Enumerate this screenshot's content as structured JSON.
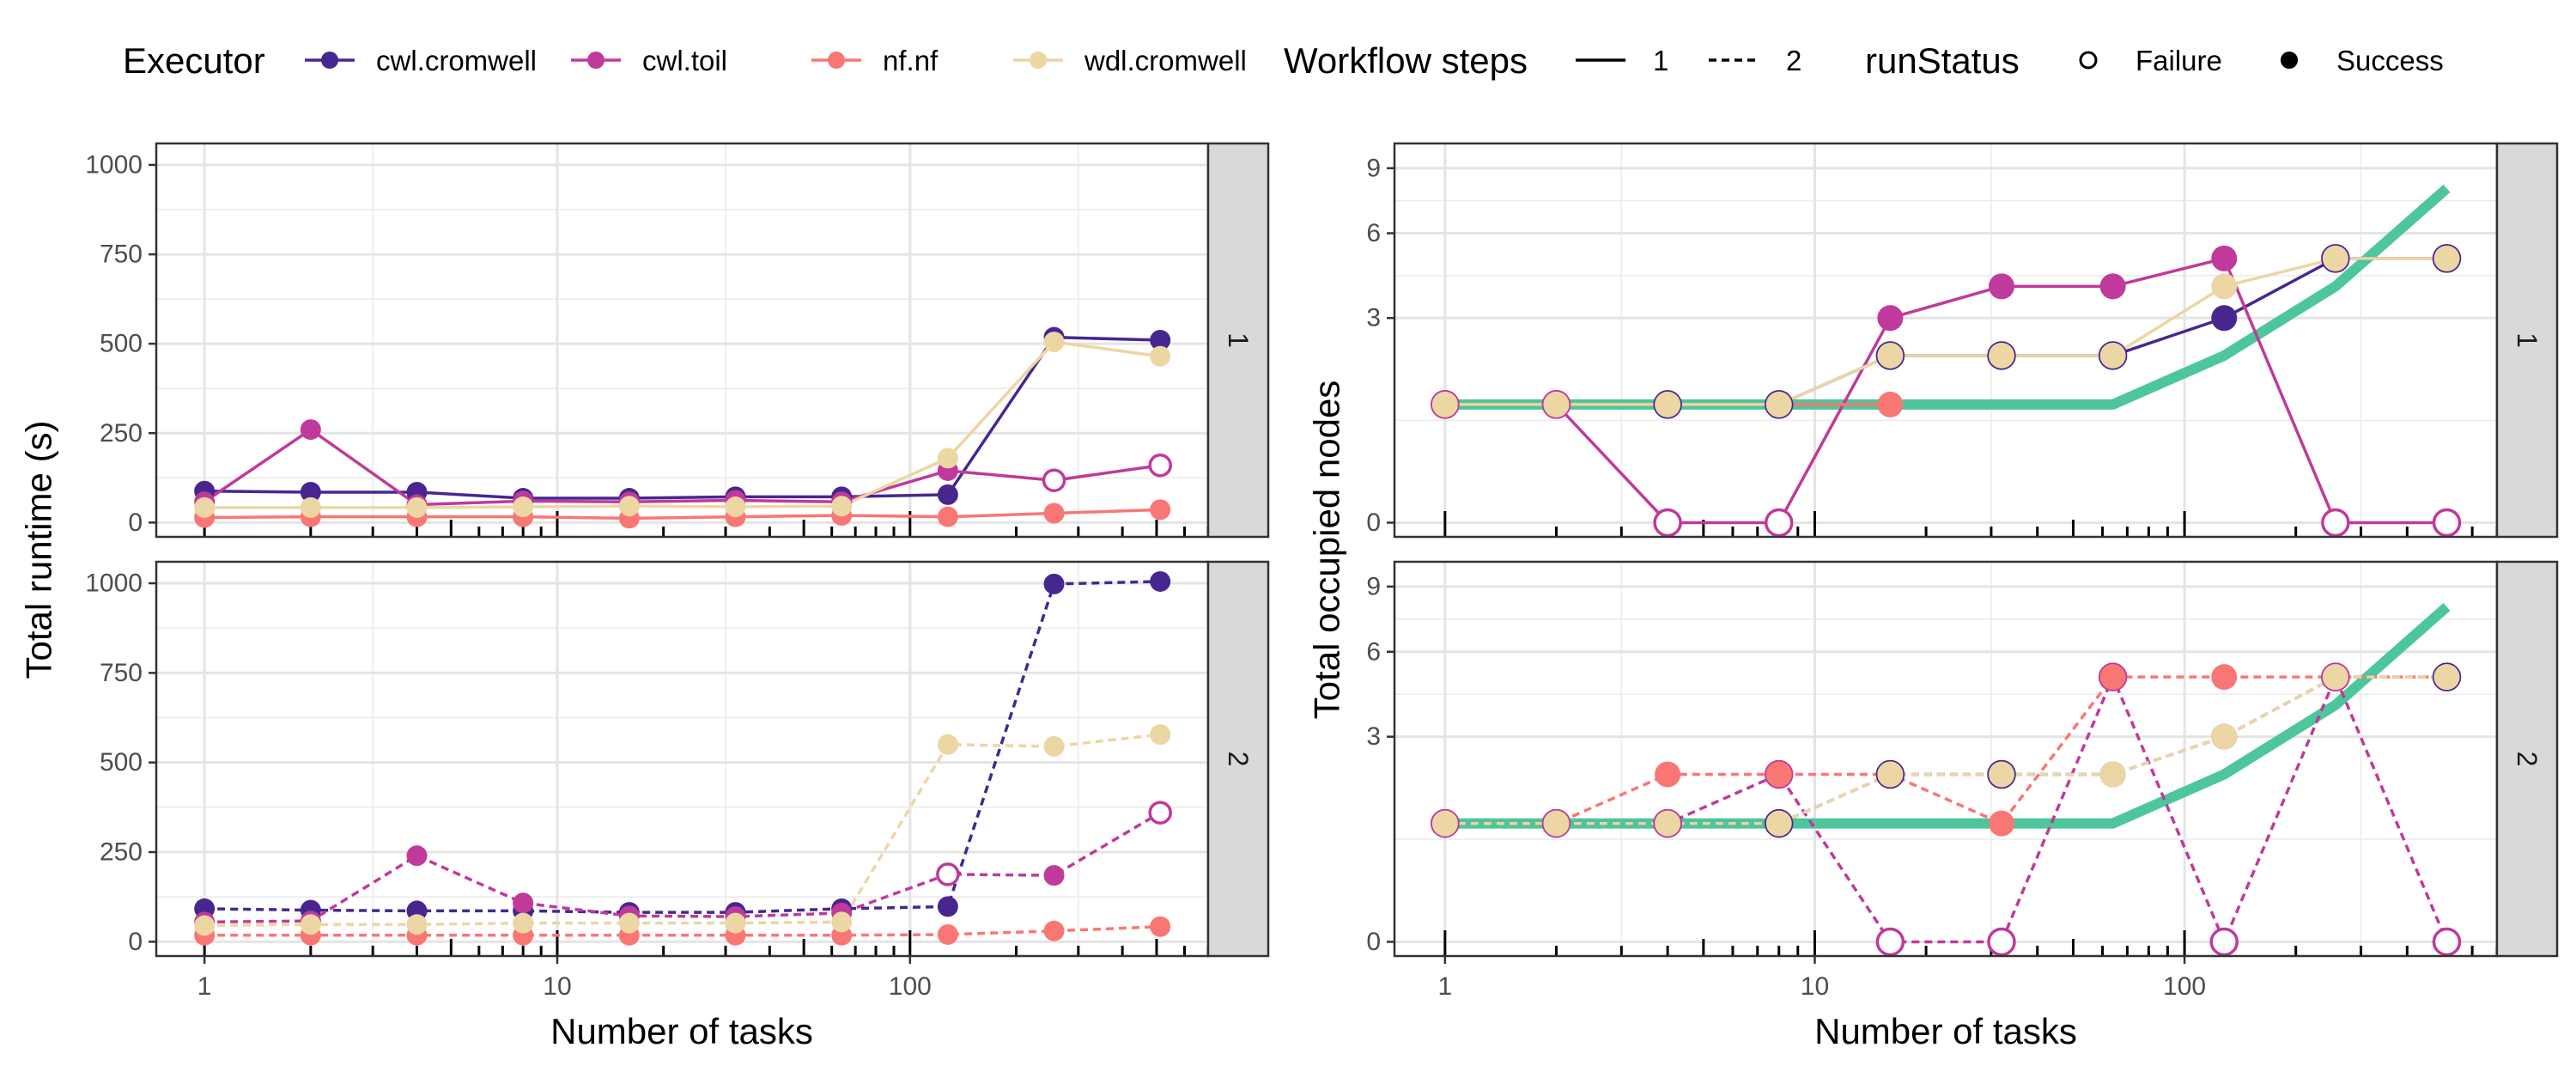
{
  "chart_data": {
    "type": "line",
    "x_scale": "log",
    "legend": {
      "executor": {
        "title": "Executor",
        "items": [
          {
            "key": "cwl.cromwell",
            "label": "cwl.cromwell",
            "color": "#47278f"
          },
          {
            "key": "cwl.toil",
            "label": "cwl.toil",
            "color": "#bf3a9a"
          },
          {
            "key": "nf.nf",
            "label": "nf.nf",
            "color": "#f87774"
          },
          {
            "key": "wdl.cromwell",
            "label": "wdl.cromwell",
            "color": "#ecd6a4"
          }
        ]
      },
      "steps": {
        "title": "Workflow steps",
        "items": [
          {
            "label": "1",
            "linetype": "solid"
          },
          {
            "label": "2",
            "linetype": "dashed"
          }
        ]
      },
      "status": {
        "title": "runStatus",
        "items": [
          {
            "label": "Failure",
            "shape": "open-circle"
          },
          {
            "label": "Success",
            "shape": "filled-circle"
          }
        ]
      }
    },
    "reference_color": "#4cc69a",
    "panels": [
      {
        "id": "runtime",
        "ylabel": "Total runtime (s)",
        "xlabel": "Number of tasks",
        "ylim": [
          -40,
          1060
        ],
        "yticks": [
          0,
          250,
          500,
          750,
          1000
        ],
        "y_tick_labels": [
          "0",
          "250",
          "500",
          "750",
          "1000"
        ],
        "x_tick_values": [
          1,
          10,
          100
        ],
        "x_tick_labels": [
          "1",
          "10",
          "100"
        ],
        "facets": [
          {
            "strip": "1",
            "series": [
              {
                "executor": "cwl.cromwell",
                "linetype": "solid",
                "x": [
                  1,
                  2,
                  4,
                  8,
                  16,
                  32,
                  64,
                  128,
                  256,
                  512
                ],
                "y": [
                  88,
                  85,
                  85,
                  68,
                  68,
                  72,
                  72,
                  78,
                  518,
                  510
                ],
                "status": [
                  "S",
                  "S",
                  "S",
                  "S",
                  "S",
                  "S",
                  "S",
                  "S",
                  "S",
                  "S"
                ]
              },
              {
                "executor": "cwl.toil",
                "linetype": "solid",
                "x": [
                  1,
                  2,
                  4,
                  8,
                  16,
                  32,
                  64,
                  128,
                  256,
                  512
                ],
                "y": [
                  58,
                  260,
                  50,
                  60,
                  58,
                  62,
                  58,
                  145,
                  118,
                  160
                ],
                "status": [
                  "S",
                  "S",
                  "S",
                  "S",
                  "S",
                  "S",
                  "S",
                  "S",
                  "F",
                  "F"
                ]
              },
              {
                "executor": "nf.nf",
                "linetype": "solid",
                "x": [
                  1,
                  2,
                  4,
                  8,
                  16,
                  32,
                  64,
                  128,
                  256,
                  512
                ],
                "y": [
                  14,
                  16,
                  16,
                  16,
                  12,
                  16,
                  20,
                  16,
                  26,
                  36
                ],
                "status": [
                  "S",
                  "S",
                  "S",
                  "S",
                  "S",
                  "S",
                  "S",
                  "S",
                  "S",
                  "S"
                ]
              },
              {
                "executor": "wdl.cromwell",
                "linetype": "solid",
                "x": [
                  1,
                  2,
                  4,
                  8,
                  16,
                  32,
                  64,
                  128,
                  256,
                  512
                ],
                "y": [
                  42,
                  42,
                  42,
                  44,
                  46,
                  44,
                  46,
                  180,
                  505,
                  465
                ],
                "status": [
                  "S",
                  "S",
                  "S",
                  "S",
                  "S",
                  "S",
                  "S",
                  "S",
                  "S",
                  "S"
                ]
              }
            ]
          },
          {
            "strip": "2",
            "series": [
              {
                "executor": "cwl.cromwell",
                "linetype": "dashed",
                "x": [
                  1,
                  2,
                  4,
                  8,
                  16,
                  32,
                  64,
                  128,
                  256,
                  512
                ],
                "y": [
                  92,
                  88,
                  86,
                  86,
                  82,
                  82,
                  92,
                  98,
                  998,
                  1005
                ],
                "status": [
                  "S",
                  "S",
                  "S",
                  "S",
                  "S",
                  "S",
                  "S",
                  "S",
                  "S",
                  "S"
                ]
              },
              {
                "executor": "cwl.toil",
                "linetype": "dashed",
                "x": [
                  1,
                  2,
                  4,
                  8,
                  16,
                  32,
                  64,
                  128,
                  256,
                  512
                ],
                "y": [
                  55,
                  58,
                  240,
                  108,
                  72,
                  70,
                  80,
                  188,
                  185,
                  360
                ],
                "status": [
                  "S",
                  "S",
                  "S",
                  "S",
                  "S",
                  "S",
                  "S",
                  "F",
                  "S",
                  "F"
                ]
              },
              {
                "executor": "nf.nf",
                "linetype": "dashed",
                "x": [
                  1,
                  2,
                  4,
                  8,
                  16,
                  32,
                  64,
                  128,
                  256,
                  512
                ],
                "y": [
                  18,
                  18,
                  18,
                  18,
                  18,
                  18,
                  18,
                  20,
                  30,
                  42
                ],
                "status": [
                  "S",
                  "S",
                  "S",
                  "S",
                  "S",
                  "S",
                  "S",
                  "S",
                  "S",
                  "S"
                ]
              },
              {
                "executor": "wdl.cromwell",
                "linetype": "dashed",
                "x": [
                  1,
                  2,
                  4,
                  8,
                  16,
                  32,
                  64,
                  128,
                  256,
                  512
                ],
                "y": [
                  45,
                  48,
                  48,
                  52,
                  52,
                  52,
                  55,
                  550,
                  545,
                  578
                ],
                "status": [
                  "S",
                  "S",
                  "S",
                  "S",
                  "S",
                  "S",
                  "S",
                  "S",
                  "S",
                  "S"
                ]
              }
            ]
          }
        ]
      },
      {
        "id": "nodes",
        "ylabel": "Total occupied nodes",
        "xlabel": "Number of tasks",
        "y_scale": "sqrt",
        "ylim": [
          -0.05,
          10.3
        ],
        "yticks": [
          0,
          3,
          6,
          9
        ],
        "y_tick_labels": [
          "0",
          "3",
          "6",
          "9"
        ],
        "x_tick_values": [
          1,
          10,
          100
        ],
        "x_tick_labels": [
          "1",
          "10",
          "100"
        ],
        "facets": [
          {
            "strip": "1",
            "reference": {
              "x": [
                1,
                2,
                4,
                8,
                16,
                32,
                64,
                128,
                256,
                512
              ],
              "y": [
                1,
                1,
                1,
                1,
                1,
                1,
                1,
                2,
                4,
                8
              ]
            },
            "series": [
              {
                "executor": "cwl.cromwell",
                "linetype": "solid",
                "x": [
                  1,
                  2,
                  4,
                  8,
                  16,
                  32,
                  64,
                  128,
                  256,
                  512
                ],
                "y": [
                  1,
                  1,
                  1,
                  1,
                  2,
                  2,
                  2,
                  3,
                  5,
                  5
                ],
                "status": [
                  "F",
                  "F",
                  "F",
                  "F",
                  "F",
                  "F",
                  "F",
                  "S",
                  "F",
                  "F"
                ]
              },
              {
                "executor": "cwl.toil",
                "linetype": "solid",
                "x": [
                  1,
                  2,
                  4,
                  8,
                  16,
                  32,
                  64,
                  128,
                  256,
                  512
                ],
                "y": [
                  1,
                  1,
                  0,
                  0,
                  3,
                  4,
                  4,
                  5,
                  0,
                  0
                ],
                "status": [
                  "F",
                  "F",
                  "F",
                  "F",
                  "S",
                  "S",
                  "S",
                  "S",
                  "F",
                  "F"
                ]
              },
              {
                "executor": "nf.nf",
                "linetype": "solid",
                "x": [
                  1,
                  2,
                  4,
                  8,
                  16
                ],
                "y": [
                  1,
                  1,
                  1,
                  1,
                  1
                ],
                "status": [
                  "S",
                  "S",
                  "S",
                  "S",
                  "S"
                ]
              },
              {
                "executor": "wdl.cromwell",
                "linetype": "solid",
                "x": [
                  1,
                  2,
                  4,
                  8,
                  16,
                  32,
                  64,
                  128,
                  256,
                  512
                ],
                "y": [
                  1,
                  1,
                  1,
                  1,
                  2,
                  2,
                  2,
                  4,
                  5,
                  5
                ],
                "status": [
                  "S",
                  "S",
                  "S",
                  "S",
                  "S",
                  "S",
                  "S",
                  "S",
                  "S",
                  "S"
                ]
              }
            ]
          },
          {
            "strip": "2",
            "reference": {
              "x": [
                1,
                2,
                4,
                8,
                16,
                32,
                64,
                128,
                256,
                512
              ],
              "y": [
                1,
                1,
                1,
                1,
                1,
                1,
                1,
                2,
                4,
                8
              ]
            },
            "series": [
              {
                "executor": "cwl.cromwell",
                "linetype": "dashed",
                "x": [
                  1,
                  2,
                  4,
                  8,
                  16,
                  32,
                  64,
                  128,
                  256,
                  512
                ],
                "y": [
                  1,
                  1,
                  1,
                  1,
                  2,
                  2,
                  2,
                  3,
                  5,
                  5
                ],
                "status": [
                  "F",
                  "F",
                  "F",
                  "F",
                  "F",
                  "F",
                  "S",
                  "S",
                  "F",
                  "F"
                ]
              },
              {
                "executor": "cwl.toil",
                "linetype": "dashed",
                "x": [
                  1,
                  2,
                  4,
                  8,
                  16,
                  32,
                  64,
                  128,
                  256,
                  512
                ],
                "y": [
                  1,
                  1,
                  1,
                  2,
                  0,
                  0,
                  5,
                  0,
                  5,
                  0
                ],
                "status": [
                  "F",
                  "F",
                  "F",
                  "F",
                  "F",
                  "F",
                  "F",
                  "F",
                  "F",
                  "F"
                ]
              },
              {
                "executor": "nf.nf",
                "linetype": "dashed",
                "x": [
                  1,
                  2,
                  4,
                  8,
                  16,
                  32,
                  64,
                  128,
                  256,
                  512
                ],
                "y": [
                  1,
                  1,
                  2,
                  2,
                  2,
                  1,
                  5,
                  5,
                  5,
                  5
                ],
                "status": [
                  "S",
                  "S",
                  "S",
                  "S",
                  "S",
                  "S",
                  "S",
                  "S",
                  "S",
                  "S"
                ]
              },
              {
                "executor": "wdl.cromwell",
                "linetype": "dashed",
                "x": [
                  1,
                  2,
                  4,
                  8,
                  16,
                  32,
                  64,
                  128,
                  256,
                  512
                ],
                "y": [
                  1,
                  1,
                  1,
                  1,
                  2,
                  2,
                  2,
                  3,
                  5,
                  5
                ],
                "status": [
                  "S",
                  "S",
                  "S",
                  "S",
                  "S",
                  "S",
                  "S",
                  "S",
                  "S",
                  "S"
                ]
              }
            ]
          }
        ]
      }
    ]
  }
}
